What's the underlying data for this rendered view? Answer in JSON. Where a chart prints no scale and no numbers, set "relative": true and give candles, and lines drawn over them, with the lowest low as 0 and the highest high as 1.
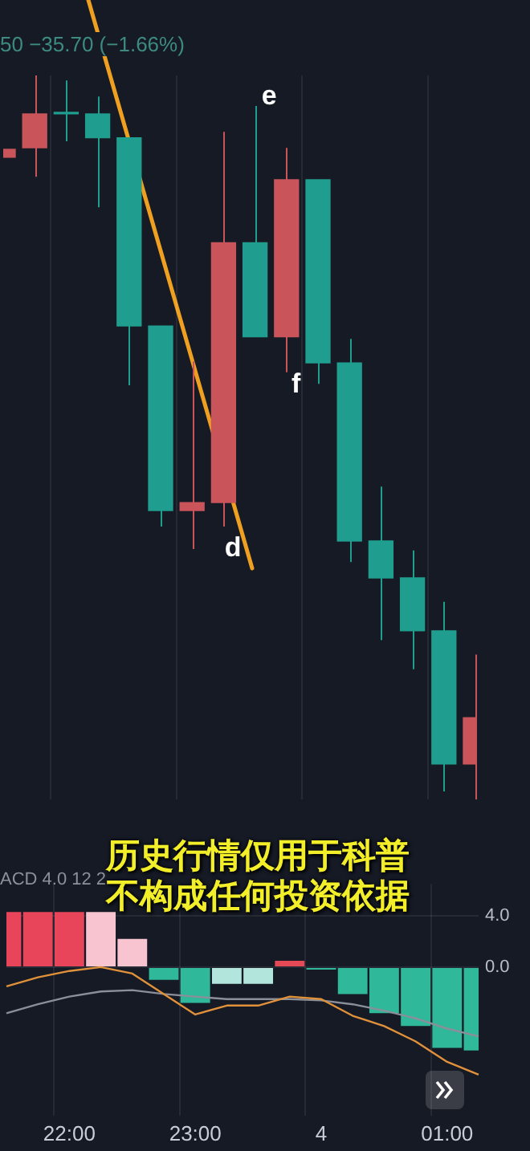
{
  "chart_data": [
    {
      "type": "candlestick",
      "subtitle": "50 −35.70 (−1.66%)",
      "relative": true,
      "tick_labels": false,
      "grid": "x",
      "legend": false,
      "categories": [
        null,
        null,
        null,
        null,
        null,
        null,
        null,
        null,
        null,
        null,
        null,
        null,
        null,
        null,
        null,
        null
      ],
      "ohlc": [
        [
          0.887,
          0.898,
          0.887,
          0.898
        ],
        [
          0.9,
          1,
          0.86,
          0.947
        ],
        [
          0.947,
          0.993,
          0.909,
          0.947
        ],
        [
          0.947,
          0.971,
          0.818,
          0.914
        ],
        [
          0.914,
          0.914,
          0.572,
          0.654
        ],
        [
          0.654,
          0.654,
          0.377,
          0.399
        ],
        [
          0.399,
          0.605,
          0.346,
          0.41
        ],
        [
          0.41,
          0.922,
          0.377,
          0.769
        ],
        [
          0.769,
          0.958,
          0.639,
          0.639
        ],
        [
          0.639,
          0.9,
          0.59,
          0.856
        ],
        [
          0.856,
          0.856,
          0.574,
          0.603
        ],
        [
          0.603,
          0.636,
          0.328,
          0.357
        ],
        [
          0.357,
          0.432,
          0.22,
          0.306
        ],
        [
          0.306,
          0.344,
          0.18,
          0.233
        ],
        [
          0.233,
          0.273,
          0.011,
          0.049
        ],
        [
          0.049,
          0.2,
          0,
          0.113
        ]
      ],
      "colors": [
        "#c9545a",
        "#c9545a",
        "#1f9e8f",
        "#1f9e8f",
        "#1f9e8f",
        "#1f9e8f",
        "#c9545a",
        "#c9545a",
        "#1f9e8f",
        "#c9545a",
        "#1f9e8f",
        "#1f9e8f",
        "#1f9e8f",
        "#1f9e8f",
        "#1f9e8f",
        "#c9545a"
      ],
      "annotations": [
        "e",
        "f",
        "d",
        "历史行情仅用于科普不构成任何投资依据"
      ]
    },
    {
      "type": "bar",
      "title": "ACD 4.0 12 2",
      "legend": false,
      "grid": true,
      "marker": "none",
      "categories": [
        null,
        null,
        "22:00",
        null,
        null,
        null,
        "23:00",
        null,
        null,
        null,
        "4",
        null,
        null,
        null,
        "01:00",
        null
      ],
      "series": [
        {
          "type": "bar",
          "values": [
            4.3,
            4.3,
            4.3,
            4.3,
            2.2,
            -1.0,
            -2.8,
            -1.3,
            -1.3,
            0.5,
            -0.2,
            -2.1,
            -3.6,
            -4.6,
            -6.3,
            -6.5
          ],
          "colors": [
            "#e8455a",
            "#e8455a",
            "#e8455a",
            "#f7c4cf",
            "#f7c4cf",
            "#2fb89a",
            "#2fb89a",
            "#b2e6dc",
            "#b2e6dc",
            "#e34a55",
            "#2fb89a",
            "#2fb89a",
            "#2fb89a",
            "#2fb89a",
            "#2fb89a",
            "#2fb89a"
          ]
        },
        {
          "type": "line",
          "color": "#e0913a",
          "values": [
            -1.5,
            -0.8,
            -0.3,
            0,
            -0.5,
            -2.1,
            -3.7,
            -3.0,
            -3.0,
            -2.3,
            -2.5,
            -3.8,
            -4.6,
            -5.8,
            -7.4,
            -8.4
          ]
        },
        {
          "type": "line",
          "color": "#8a8f99",
          "values": [
            -3.6,
            -2.9,
            -2.3,
            -1.9,
            -1.8,
            -2.1,
            -2.3,
            -2.5,
            -2.5,
            -2.5,
            -2.6,
            -2.9,
            -3.4,
            -4.0,
            -4.8,
            -5.4
          ]
        }
      ],
      "ylim": [
        -11.6,
        6.5
      ],
      "yticks": [
        {
          "value": 4,
          "label": "4.0"
        },
        {
          "value": 0,
          "label": "0.0"
        }
      ]
    }
  ]
}
